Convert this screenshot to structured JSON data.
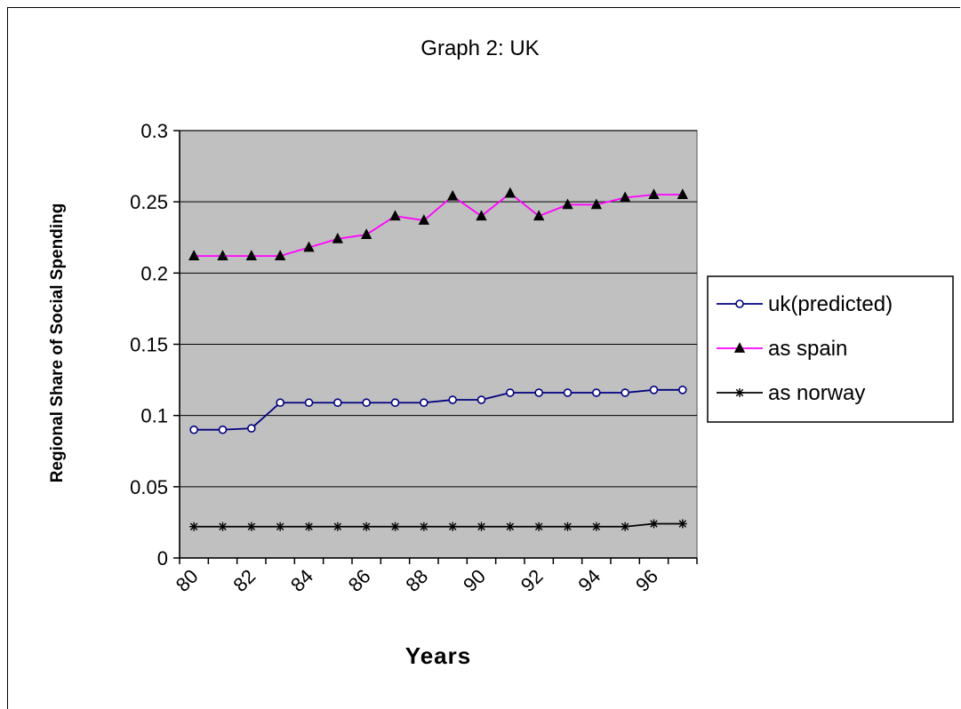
{
  "chart_data": {
    "type": "line",
    "title": "Graph 2: UK",
    "xlabel": "Years",
    "ylabel": "Regional Share of Social Spending",
    "ylim": [
      0,
      0.3
    ],
    "y_ticks": [
      "0",
      "0.05",
      "0.1",
      "0.15",
      "0.2",
      "0.25",
      "0.3"
    ],
    "x_tick_labels": [
      "80",
      "82",
      "84",
      "86",
      "88",
      "90",
      "92",
      "94",
      "96"
    ],
    "x": [
      "80",
      "81",
      "82",
      "83",
      "84",
      "85",
      "86",
      "87",
      "88",
      "89",
      "90",
      "91",
      "92",
      "93",
      "94",
      "95",
      "96",
      "97"
    ],
    "grid": "horizontal",
    "plot_background": "#c0c0c0",
    "legend_position": "right",
    "series": [
      {
        "name": "uk(predicted)",
        "color": "#000080",
        "marker": "circle",
        "values": [
          0.09,
          0.09,
          0.091,
          0.109,
          0.109,
          0.109,
          0.109,
          0.109,
          0.109,
          0.111,
          0.111,
          0.116,
          0.116,
          0.116,
          0.116,
          0.116,
          0.118,
          0.118
        ]
      },
      {
        "name": "as spain",
        "color": "#ff00ff",
        "marker": "triangle",
        "values": [
          0.212,
          0.212,
          0.212,
          0.212,
          0.218,
          0.224,
          0.227,
          0.24,
          0.237,
          0.254,
          0.24,
          0.256,
          0.24,
          0.248,
          0.248,
          0.253,
          0.255,
          0.255
        ]
      },
      {
        "name": "as norway",
        "color": "#000000",
        "marker": "asterisk",
        "values": [
          0.022,
          0.022,
          0.022,
          0.022,
          0.022,
          0.022,
          0.022,
          0.022,
          0.022,
          0.022,
          0.022,
          0.022,
          0.022,
          0.022,
          0.022,
          0.022,
          0.024,
          0.024
        ]
      }
    ]
  }
}
